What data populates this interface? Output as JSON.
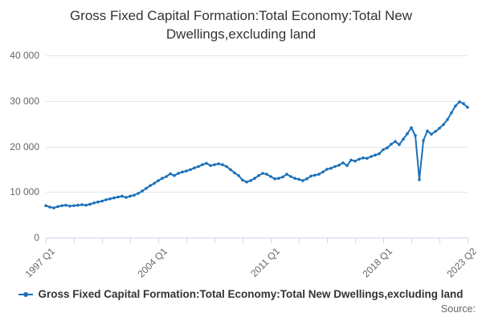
{
  "title_line1": "Gross Fixed Capital Formation:Total Economy:Total New",
  "title_line2": "Dwellings,excluding land",
  "legend": {
    "label": "Gross Fixed Capital Formation:Total Economy:Total New Dwellings,excluding land"
  },
  "source_label": "Source:",
  "colors": {
    "series": "#1d70b8",
    "grid": "#e6e6e6",
    "axis": "#ccd6eb",
    "axis_text": "#666666",
    "title_text": "#333333"
  },
  "chart_data": {
    "type": "line",
    "title": "Gross Fixed Capital Formation:Total Economy:Total New Dwellings,excluding land",
    "xlabel": "",
    "ylabel": "",
    "grid": "horizontal",
    "legend_position": "bottom",
    "x_unit": "quarter",
    "x_range": [
      "1997 Q1",
      "2023 Q2"
    ],
    "n_points": 106,
    "x_minor_tick_step": 7,
    "x_labels": [
      {
        "label": "1997 Q1",
        "q": 0
      },
      {
        "label": "2004 Q1",
        "q": 28
      },
      {
        "label": "2011 Q1",
        "q": 56
      },
      {
        "label": "2018 Q1",
        "q": 84
      },
      {
        "label": "2023 Q2",
        "q": 105
      }
    ],
    "ylim": [
      0,
      40000
    ],
    "y_ticks": [
      {
        "v": 0,
        "label": "0"
      },
      {
        "v": 10000,
        "label": "10 000"
      },
      {
        "v": 20000,
        "label": "20 000"
      },
      {
        "v": 30000,
        "label": "30 000"
      },
      {
        "v": 40000,
        "label": "40 000"
      }
    ],
    "series": [
      {
        "name": "Gross Fixed Capital Formation:Total Economy:Total New Dwellings,excluding land",
        "values": [
          7000,
          6700,
          6500,
          6800,
          7000,
          7100,
          6900,
          7000,
          7100,
          7200,
          7100,
          7300,
          7600,
          7800,
          8000,
          8300,
          8500,
          8700,
          8900,
          9100,
          8800,
          9100,
          9300,
          9700,
          10200,
          10800,
          11400,
          11900,
          12500,
          13000,
          13400,
          14000,
          13600,
          14100,
          14400,
          14600,
          14900,
          15300,
          15600,
          16000,
          16300,
          15800,
          16000,
          16200,
          16000,
          15600,
          14900,
          14200,
          13600,
          12600,
          12200,
          12500,
          13000,
          13600,
          14100,
          13900,
          13400,
          12900,
          13000,
          13300,
          13900,
          13400,
          13000,
          12800,
          12500,
          12900,
          13500,
          13700,
          13900,
          14400,
          15000,
          15200,
          15600,
          15900,
          16400,
          15800,
          17000,
          16800,
          17200,
          17500,
          17400,
          17800,
          18100,
          18400,
          19300,
          19700,
          20500,
          21100,
          20400,
          21600,
          22800,
          24100,
          22400,
          12700,
          21300,
          23400,
          22700,
          23300,
          24000,
          24800,
          25900,
          27400,
          28900,
          29800,
          29400,
          28600
        ]
      }
    ]
  }
}
